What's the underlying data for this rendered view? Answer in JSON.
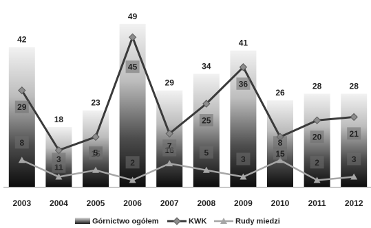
{
  "chart_data": {
    "type": "bar",
    "title": "",
    "xlabel": "",
    "ylabel": "",
    "ylim": [
      0,
      50
    ],
    "grid": false,
    "legend_position": "bottom",
    "categories": [
      "2003",
      "2004",
      "2005",
      "2006",
      "2007",
      "2008",
      "2009",
      "2010",
      "2011",
      "2012"
    ],
    "series": [
      {
        "name": "Górnictwo ogółem",
        "kind": "bar",
        "values": [
          42,
          18,
          23,
          49,
          29,
          34,
          41,
          26,
          28,
          28
        ]
      },
      {
        "name": "KWK",
        "kind": "line",
        "marker": "diamond",
        "values": [
          29,
          11,
          15,
          45,
          16,
          25,
          36,
          15,
          20,
          21
        ]
      },
      {
        "name": "Rudy miedzi",
        "kind": "line",
        "marker": "triangle",
        "values": [
          8,
          3,
          5,
          2,
          7,
          5,
          3,
          8,
          2,
          3
        ]
      }
    ]
  },
  "colors": {
    "bar_top": "#f2f2f2",
    "bar_bottom": "#0d0d0d",
    "kwk_line": "#3a3a3a",
    "kwk_marker": "#8c8c8c",
    "rudy_line": "#a6a6a6",
    "label_box": "#6e6e6e",
    "text": "#222222"
  }
}
